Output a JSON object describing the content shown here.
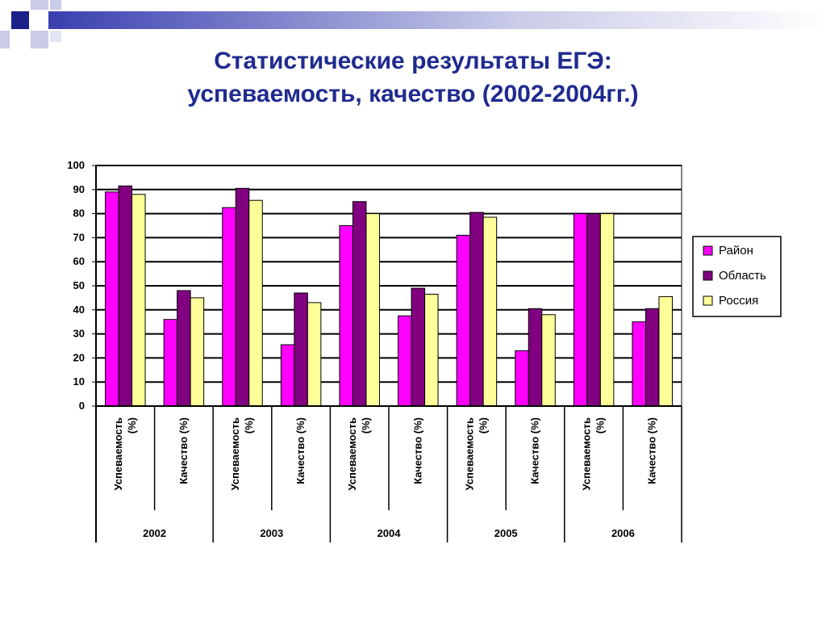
{
  "title_lines": [
    "Статистические результаты ЕГЭ:",
    "успеваемость, качество (2002-2004гг.)"
  ],
  "chart_data": {
    "type": "bar",
    "ylim": [
      0,
      100
    ],
    "y_ticks": [
      0,
      10,
      20,
      30,
      40,
      50,
      60,
      70,
      80,
      90,
      100
    ],
    "grid": true,
    "legend_position": "right",
    "groups": [
      "2002",
      "2003",
      "2004",
      "2005",
      "2006"
    ],
    "subcategories": [
      "Успеваемость (%)",
      "Качество (%)"
    ],
    "subcategory_lines": [
      [
        "Успеваемость",
        "(%)"
      ],
      [
        "Качество (%)"
      ]
    ],
    "series": [
      {
        "name": "Район",
        "color": "#ff00ff",
        "values": [
          89,
          36,
          82.5,
          25.5,
          75,
          37.5,
          71,
          23,
          80,
          35
        ]
      },
      {
        "name": "Область",
        "color": "#800080",
        "values": [
          91.5,
          48,
          90.5,
          47,
          85,
          49,
          80.5,
          40.5,
          80,
          40.5
        ]
      },
      {
        "name": "Россия",
        "color": "#ffff99",
        "values": [
          88,
          45,
          85.5,
          43,
          80,
          46.5,
          78.5,
          38,
          80,
          45.5
        ]
      }
    ]
  }
}
